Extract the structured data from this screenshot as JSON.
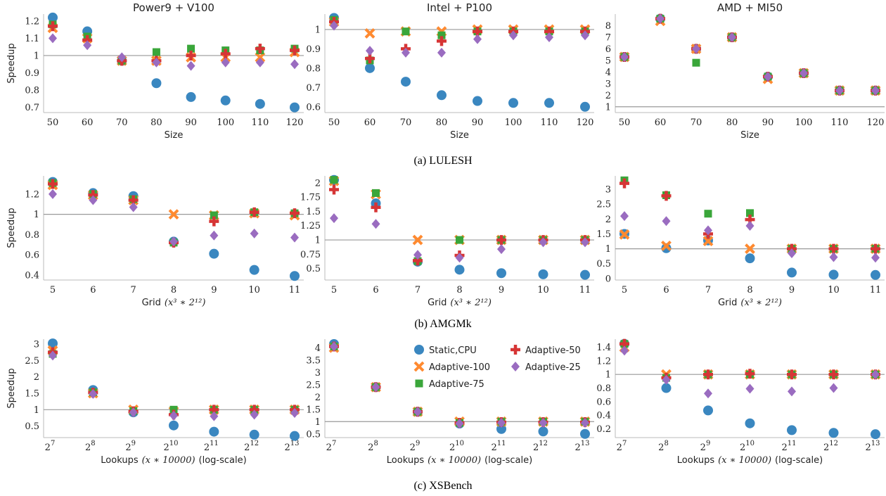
{
  "colors": {
    "Static,CPU": "#3a87c0",
    "Adaptive-100": "#ff8a30",
    "Adaptive-75": "#3aa63a",
    "Adaptive-50": "#d63535",
    "Adaptive-25": "#9a6cc0",
    "baseline": "#999999"
  },
  "legend": {
    "entries": [
      "Static,CPU",
      "Adaptive-100",
      "Adaptive-75",
      "Adaptive-50",
      "Adaptive-25"
    ]
  },
  "captions": [
    "(a) LULESH",
    "(b) AMGMk",
    "(c) XSBench"
  ],
  "chart_data": [
    {
      "type": "scatter",
      "row": 0,
      "col": 0,
      "title": "Power9 + V100",
      "xlabel": "Size",
      "ylabel": "Speedup",
      "x": [
        50,
        60,
        70,
        80,
        90,
        100,
        110,
        120
      ],
      "x_ticks": [
        "50",
        "60",
        "70",
        "80",
        "90",
        "100",
        "110",
        "120"
      ],
      "ylim": [
        0.67,
        1.24
      ],
      "yticks": [
        0.7,
        0.8,
        0.9,
        1,
        1.1,
        1.2
      ],
      "ytick_labels": [
        "0.7",
        "0.8",
        "0.9",
        "1",
        "1.1",
        "1.2"
      ],
      "series": [
        {
          "name": "Static,CPU",
          "values": [
            1.22,
            1.14,
            0.97,
            0.84,
            0.76,
            0.74,
            0.72,
            0.7
          ]
        },
        {
          "name": "Adaptive-100",
          "values": [
            1.16,
            1.1,
            0.97,
            0.97,
            0.99,
            0.99,
            0.99,
            1.02
          ]
        },
        {
          "name": "Adaptive-75",
          "values": [
            1.18,
            1.11,
            0.97,
            1.02,
            1.04,
            1.03,
            1.03,
            1.04
          ]
        },
        {
          "name": "Adaptive-50",
          "values": [
            1.17,
            1.09,
            0.97,
            0.97,
            1.0,
            1.01,
            1.04,
            1.03
          ]
        },
        {
          "name": "Adaptive-25",
          "values": [
            1.1,
            1.06,
            0.99,
            0.96,
            0.94,
            0.96,
            0.96,
            0.95
          ]
        }
      ]
    },
    {
      "type": "scatter",
      "row": 0,
      "col": 1,
      "title": "Intel + P100",
      "xlabel": "Size",
      "ylabel": "",
      "x": [
        50,
        60,
        70,
        80,
        90,
        100,
        110,
        120
      ],
      "x_ticks": [
        "50",
        "60",
        "70",
        "80",
        "90",
        "100",
        "110",
        "120"
      ],
      "ylim": [
        0.57,
        1.08
      ],
      "yticks": [
        0.6,
        0.7,
        0.8,
        0.9,
        1
      ],
      "ytick_labels": [
        "0.6",
        "0.7",
        "0.8",
        "0.9",
        "1"
      ],
      "series": [
        {
          "name": "Static,CPU",
          "values": [
            1.06,
            0.8,
            0.73,
            0.66,
            0.63,
            0.62,
            0.62,
            0.6
          ]
        },
        {
          "name": "Adaptive-100",
          "values": [
            1.04,
            0.98,
            0.99,
            0.99,
            1.0,
            1.0,
            1.0,
            1.0
          ]
        },
        {
          "name": "Adaptive-75",
          "values": [
            1.05,
            0.84,
            0.99,
            0.97,
            0.99,
            0.99,
            0.99,
            0.99
          ]
        },
        {
          "name": "Adaptive-50",
          "values": [
            1.04,
            0.85,
            0.9,
            0.94,
            0.99,
            0.99,
            0.99,
            0.99
          ]
        },
        {
          "name": "Adaptive-25",
          "values": [
            1.02,
            0.89,
            0.88,
            0.88,
            0.95,
            0.97,
            0.96,
            0.97
          ]
        }
      ]
    },
    {
      "type": "scatter",
      "row": 0,
      "col": 2,
      "title": "AMD + MI50",
      "xlabel": "Size",
      "ylabel": "",
      "x": [
        50,
        60,
        70,
        80,
        90,
        100,
        110,
        120
      ],
      "x_ticks": [
        "50",
        "60",
        "70",
        "80",
        "90",
        "100",
        "110",
        "120"
      ],
      "ylim": [
        0.5,
        9.0
      ],
      "yticks": [
        1,
        2,
        3,
        4,
        5,
        6,
        7,
        8
      ],
      "ytick_labels": [
        "1",
        "2",
        "3",
        "4",
        "5",
        "6",
        "7",
        "8"
      ],
      "series": [
        {
          "name": "Static,CPU",
          "values": [
            5.3,
            8.6,
            6.0,
            7.0,
            3.6,
            3.9,
            2.4,
            2.4
          ]
        },
        {
          "name": "Adaptive-100",
          "values": [
            5.3,
            8.4,
            6.0,
            7.0,
            3.4,
            3.9,
            2.4,
            2.4
          ]
        },
        {
          "name": "Adaptive-75",
          "values": [
            5.3,
            8.6,
            4.8,
            7.0,
            3.6,
            3.9,
            2.4,
            2.4
          ]
        },
        {
          "name": "Adaptive-50",
          "values": [
            5.3,
            8.6,
            6.0,
            7.0,
            3.6,
            3.9,
            2.4,
            2.4
          ]
        },
        {
          "name": "Adaptive-25",
          "values": [
            5.3,
            8.6,
            6.0,
            7.0,
            3.6,
            3.9,
            2.4,
            2.4
          ]
        }
      ]
    },
    {
      "type": "scatter",
      "row": 1,
      "col": 0,
      "title": "",
      "xlabel": "Grid",
      "xlabel_math": "(x³ ∗ 2¹²)",
      "ylabel": "Speedup",
      "x": [
        5,
        6,
        7,
        8,
        9,
        10,
        11
      ],
      "x_ticks": [
        "5",
        "6",
        "7",
        "8",
        "9",
        "10",
        "11"
      ],
      "ylim": [
        0.35,
        1.38
      ],
      "yticks": [
        0.4,
        0.6,
        0.8,
        1,
        1.2
      ],
      "ytick_labels": [
        "0.4",
        "0.6",
        "0.8",
        "1",
        "1.2"
      ],
      "series": [
        {
          "name": "Static,CPU",
          "values": [
            1.32,
            1.21,
            1.18,
            0.73,
            0.61,
            0.45,
            0.39
          ]
        },
        {
          "name": "Adaptive-100",
          "values": [
            1.29,
            1.19,
            1.14,
            1.0,
            0.99,
            1.01,
            0.99
          ]
        },
        {
          "name": "Adaptive-75",
          "values": [
            1.31,
            1.2,
            1.15,
            0.72,
            0.99,
            1.02,
            1.01
          ]
        },
        {
          "name": "Adaptive-50",
          "values": [
            1.3,
            1.19,
            1.14,
            0.72,
            0.93,
            1.02,
            1.01
          ]
        },
        {
          "name": "Adaptive-25",
          "values": [
            1.2,
            1.14,
            1.07,
            0.73,
            0.79,
            0.81,
            0.77
          ]
        }
      ]
    },
    {
      "type": "scatter",
      "row": 1,
      "col": 1,
      "title": "",
      "xlabel": "Grid",
      "xlabel_math": "(x³ ∗ 2¹²)",
      "ylabel": "",
      "x": [
        5,
        6,
        7,
        8,
        9,
        10,
        11
      ],
      "x_ticks": [
        "5",
        "6",
        "7",
        "8",
        "9",
        "10",
        "11"
      ],
      "ylim": [
        0.3,
        2.12
      ],
      "yticks": [
        0.5,
        0.75,
        1,
        1.25,
        1.5,
        1.75,
        2
      ],
      "ytick_labels": [
        "0.5",
        "0.75",
        "1",
        "1.25",
        "1.5",
        "1.75",
        "2"
      ],
      "series": [
        {
          "name": "Static,CPU",
          "values": [
            2.05,
            1.64,
            0.62,
            0.48,
            0.42,
            0.4,
            0.39
          ]
        },
        {
          "name": "Adaptive-100",
          "values": [
            2.03,
            1.8,
            1.0,
            1.0,
            1.0,
            1.0,
            1.0
          ]
        },
        {
          "name": "Adaptive-75",
          "values": [
            2.05,
            1.82,
            0.63,
            1.0,
            1.0,
            1.0,
            1.0
          ]
        },
        {
          "name": "Adaptive-50",
          "values": [
            1.88,
            1.57,
            0.64,
            0.73,
            1.0,
            1.0,
            1.0
          ]
        },
        {
          "name": "Adaptive-25",
          "values": [
            1.38,
            1.28,
            0.74,
            0.69,
            0.84,
            0.96,
            0.96
          ]
        }
      ]
    },
    {
      "type": "scatter",
      "row": 1,
      "col": 2,
      "title": "",
      "xlabel": "Grid",
      "xlabel_math": "(x³ ∗ 2¹²)",
      "ylabel": "",
      "x": [
        5,
        6,
        7,
        8,
        9,
        10,
        11
      ],
      "x_ticks": [
        "5",
        "6",
        "7",
        "8",
        "9",
        "10",
        "11"
      ],
      "ylim": [
        -0.05,
        3.45
      ],
      "yticks": [
        0,
        0.5,
        1,
        1.5,
        2,
        2.5,
        3
      ],
      "ytick_labels": [
        "0",
        "0.5",
        "1",
        "1.5",
        "2",
        "2.5",
        "3"
      ],
      "series": [
        {
          "name": "Static,CPU",
          "values": [
            1.5,
            1.02,
            1.28,
            0.68,
            0.2,
            0.13,
            0.12
          ]
        },
        {
          "name": "Adaptive-100",
          "values": [
            1.48,
            1.1,
            1.26,
            1.0,
            1.0,
            1.0,
            1.0
          ]
        },
        {
          "name": "Adaptive-75",
          "values": [
            3.3,
            2.8,
            2.18,
            2.2,
            1.0,
            1.0,
            1.0
          ]
        },
        {
          "name": "Adaptive-50",
          "values": [
            3.2,
            2.78,
            1.5,
            1.98,
            1.0,
            1.0,
            1.0
          ]
        },
        {
          "name": "Adaptive-25",
          "values": [
            2.1,
            1.93,
            1.62,
            1.77,
            0.85,
            0.72,
            0.7
          ]
        }
      ]
    },
    {
      "type": "scatter",
      "row": 2,
      "col": 0,
      "title": "",
      "xlabel": "Lookups",
      "xlabel_math": "(x ∗ 10000)",
      "xlabel_suffix": "(log-scale)",
      "ylabel": "Speedup",
      "x": [
        7,
        8,
        9,
        10,
        11,
        12,
        13
      ],
      "x_tick_base": "2",
      "x_tick_exp": [
        "7",
        "8",
        "9",
        "10",
        "11",
        "12",
        "13"
      ],
      "ylim": [
        0.15,
        3.15
      ],
      "yticks": [
        0.5,
        1,
        1.5,
        2,
        2.5,
        3
      ],
      "ytick_labels": [
        "0.5",
        "1",
        "1.5",
        "2",
        "2.5",
        "3"
      ],
      "series": [
        {
          "name": "Static,CPU",
          "values": [
            3.02,
            1.6,
            0.92,
            0.52,
            0.33,
            0.24,
            0.2
          ]
        },
        {
          "name": "Adaptive-100",
          "values": [
            2.8,
            1.5,
            1.0,
            0.95,
            1.0,
            1.0,
            1.0
          ]
        },
        {
          "name": "Adaptive-75",
          "values": [
            2.7,
            1.53,
            0.96,
            1.0,
            1.0,
            1.0,
            1.0
          ]
        },
        {
          "name": "Adaptive-50",
          "values": [
            2.75,
            1.52,
            0.95,
            0.85,
            1.0,
            1.0,
            1.0
          ]
        },
        {
          "name": "Adaptive-25",
          "values": [
            2.65,
            1.48,
            0.92,
            0.82,
            0.8,
            0.85,
            0.9
          ]
        }
      ]
    },
    {
      "type": "scatter",
      "row": 2,
      "col": 1,
      "title": "",
      "xlabel": "Lookups",
      "xlabel_math": "(x ∗ 10000)",
      "xlabel_suffix": "(log-scale)",
      "ylabel": "",
      "x": [
        7,
        8,
        9,
        10,
        11,
        12,
        13
      ],
      "x_tick_base": "2",
      "x_tick_exp": [
        "7",
        "8",
        "9",
        "10",
        "11",
        "12",
        "13"
      ],
      "ylim": [
        0.35,
        4.35
      ],
      "yticks": [
        0.5,
        1,
        1.5,
        2,
        2.5,
        3,
        3.5,
        4
      ],
      "ytick_labels": [
        "0.5",
        "1",
        "1.5",
        "2",
        "2.5",
        "3",
        "3.5",
        "4"
      ],
      "series": [
        {
          "name": "Static,CPU",
          "values": [
            4.15,
            2.4,
            1.4,
            0.92,
            0.7,
            0.6,
            0.5
          ]
        },
        {
          "name": "Adaptive-100",
          "values": [
            4.0,
            2.4,
            1.4,
            1.0,
            1.0,
            1.0,
            1.0
          ]
        },
        {
          "name": "Adaptive-75",
          "values": [
            4.05,
            2.4,
            1.4,
            0.95,
            1.0,
            1.0,
            1.0
          ]
        },
        {
          "name": "Adaptive-50",
          "values": [
            4.05,
            2.4,
            1.4,
            0.95,
            0.98,
            0.98,
            0.98
          ]
        },
        {
          "name": "Adaptive-25",
          "values": [
            4.05,
            2.4,
            1.4,
            0.92,
            0.95,
            0.95,
            0.95
          ]
        }
      ]
    },
    {
      "type": "scatter",
      "row": 2,
      "col": 2,
      "title": "",
      "xlabel": "Lookups",
      "xlabel_math": "(x ∗ 10000)",
      "xlabel_suffix": "(log-scale)",
      "ylabel": "",
      "x": [
        7,
        8,
        9,
        10,
        11,
        12,
        13
      ],
      "x_tick_base": "2",
      "x_tick_exp": [
        "7",
        "8",
        "9",
        "10",
        "11",
        "12",
        "13"
      ],
      "ylim": [
        0.07,
        1.52
      ],
      "yticks": [
        0.2,
        0.4,
        0.6,
        0.8,
        1,
        1.2,
        1.4
      ],
      "ytick_labels": [
        "0.2",
        "0.4",
        "0.6",
        "0.8",
        "1",
        "1.2",
        "1.4"
      ],
      "series": [
        {
          "name": "Static,CPU",
          "values": [
            1.45,
            0.8,
            0.47,
            0.28,
            0.18,
            0.14,
            0.12
          ]
        },
        {
          "name": "Adaptive-100",
          "values": [
            1.4,
            1.0,
            1.0,
            1.0,
            1.0,
            1.0,
            1.0
          ]
        },
        {
          "name": "Adaptive-75",
          "values": [
            1.45,
            0.95,
            1.0,
            1.0,
            1.0,
            1.0,
            1.0
          ]
        },
        {
          "name": "Adaptive-50",
          "values": [
            1.45,
            0.95,
            1.0,
            1.01,
            1.0,
            1.0,
            1.0
          ]
        },
        {
          "name": "Adaptive-25",
          "values": [
            1.35,
            0.92,
            0.72,
            0.79,
            0.75,
            0.8,
            1.0
          ]
        }
      ]
    }
  ]
}
